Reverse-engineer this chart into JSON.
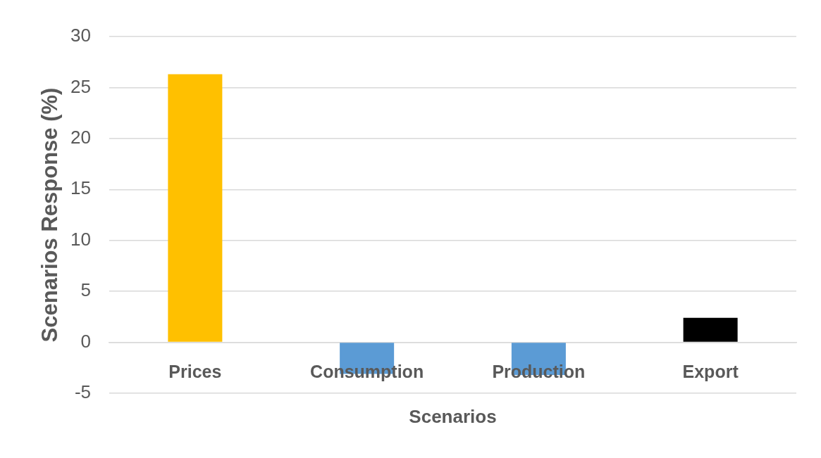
{
  "chart_data": {
    "type": "bar",
    "xlabel": "Scenarios",
    "ylabel": "Scenarios Response (%)",
    "categories": [
      "Prices",
      "Consumption",
      "Production",
      "Export"
    ],
    "values": [
      26.3,
      -3.1,
      -3.2,
      2.4
    ],
    "colors": [
      "#ffc000",
      "#5b9bd5",
      "#5b9bd5",
      "#000000"
    ],
    "ylim": [
      -5,
      30
    ],
    "yticks": [
      -5,
      0,
      5,
      10,
      15,
      20,
      25,
      30
    ],
    "grid": "y"
  }
}
